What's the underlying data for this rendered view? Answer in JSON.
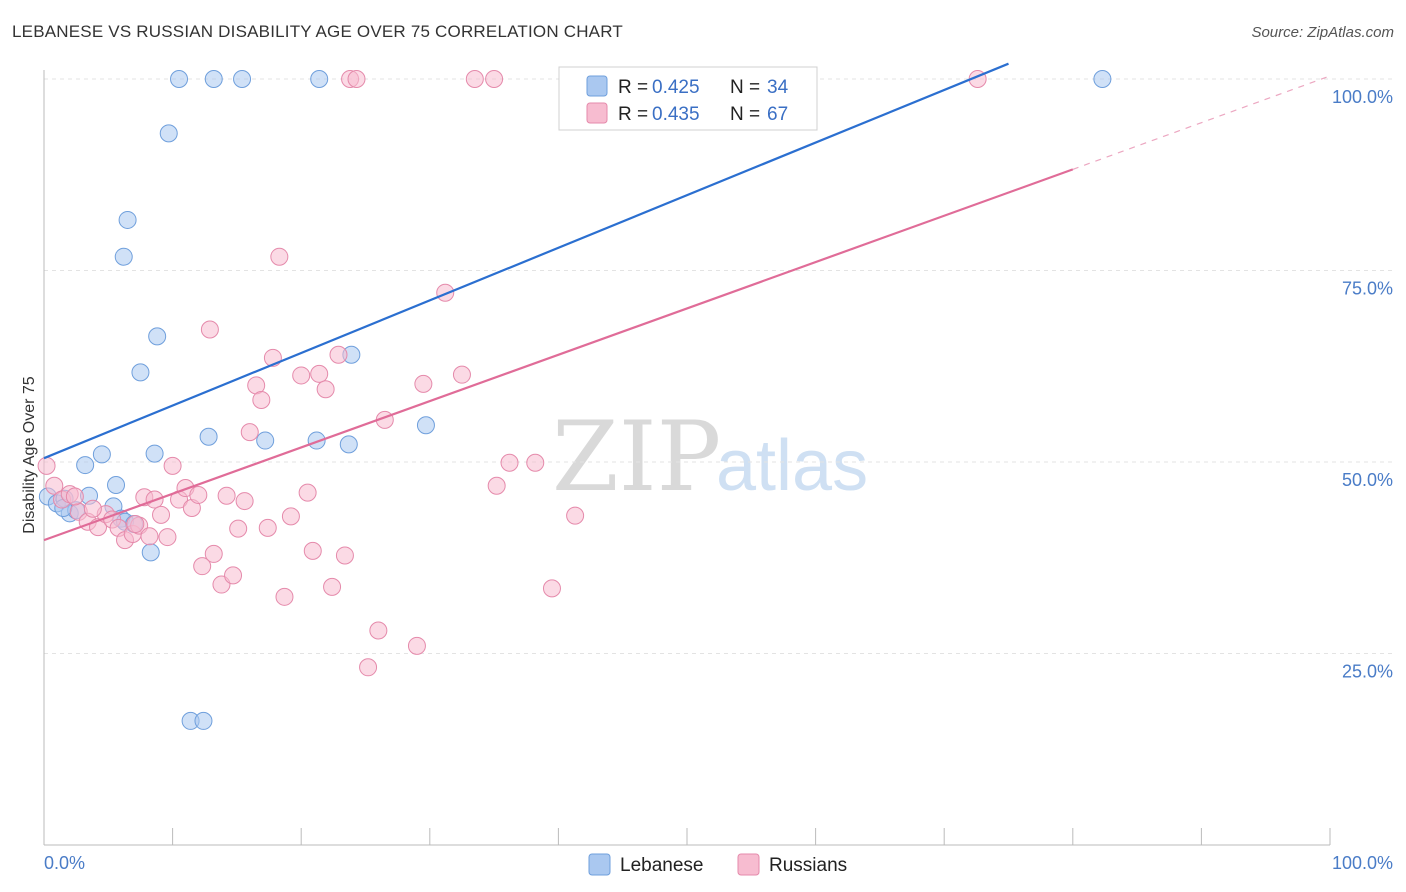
{
  "header": {
    "title": "LEBANESE VS RUSSIAN DISABILITY AGE OVER 75 CORRELATION CHART",
    "source": "Source: ZipAtlas.com"
  },
  "watermark": {
    "zip": "ZIP",
    "atlas": "atlas"
  },
  "legend": {
    "rows": [
      {
        "r_label": "R = ",
        "r_value": "0.425",
        "n_label": "N = ",
        "n_value": "34",
        "color": "#aac8f0"
      },
      {
        "r_label": "R = ",
        "r_value": "0.435",
        "n_label": "N = ",
        "n_value": "67",
        "color": "#f7bcd0"
      }
    ]
  },
  "bottom_legend": {
    "items": [
      "Lebanese",
      "Russians"
    ]
  },
  "chart_data": {
    "type": "scatter",
    "title": "LEBANESE VS RUSSIAN DISABILITY AGE OVER 75 CORRELATION CHART",
    "xlabel": "",
    "ylabel": "Disability Age Over 75",
    "xlim": [
      0,
      100
    ],
    "ylim": [
      0,
      102
    ],
    "x_tick_labels": [
      "0.0%",
      "100.0%"
    ],
    "y_ticks": [
      25,
      50,
      75,
      100
    ],
    "y_tick_labels": [
      "25.0%",
      "50.0%",
      "75.0%",
      "100.0%"
    ],
    "series": [
      {
        "name": "Lebanese",
        "color": "#aac8f0",
        "stroke": "#6f9fdc",
        "line_color": "#2b6fd0",
        "trend": {
          "x": [
            0,
            75
          ],
          "y": [
            50.5,
            102
          ]
        },
        "points": [
          [
            0.3,
            45.5
          ],
          [
            1.0,
            44.6
          ],
          [
            1.6,
            45.2
          ],
          [
            2.0,
            43.3
          ],
          [
            2.5,
            43.7
          ],
          [
            3.2,
            49.6
          ],
          [
            3.5,
            45.6
          ],
          [
            4.5,
            51.0
          ],
          [
            5.4,
            44.2
          ],
          [
            6.0,
            42.6
          ],
          [
            5.6,
            47.0
          ],
          [
            6.3,
            42.2
          ],
          [
            7.0,
            41.9
          ],
          [
            6.5,
            81.6
          ],
          [
            6.2,
            76.8
          ],
          [
            7.5,
            61.7
          ],
          [
            8.6,
            51.1
          ],
          [
            8.3,
            38.2
          ],
          [
            8.8,
            66.4
          ],
          [
            9.7,
            92.9
          ],
          [
            10.5,
            100.0
          ],
          [
            13.2,
            100.0
          ],
          [
            15.4,
            100.0
          ],
          [
            21.4,
            100.0
          ],
          [
            82.3,
            100.0
          ],
          [
            12.8,
            53.3
          ],
          [
            17.2,
            52.8
          ],
          [
            21.2,
            52.8
          ],
          [
            23.9,
            64.0
          ],
          [
            23.7,
            52.3
          ],
          [
            29.7,
            54.8
          ],
          [
            11.4,
            16.2
          ],
          [
            12.4,
            16.2
          ],
          [
            1.5,
            44.0
          ]
        ]
      },
      {
        "name": "Russians",
        "color": "#f7bcd0",
        "stroke": "#e58aab",
        "line_color": "#e06c98",
        "trend": {
          "x": [
            0,
            80
          ],
          "y": [
            39.8,
            88.2
          ]
        },
        "trend_ext": {
          "x": [
            80,
            100
          ],
          "y": [
            88.2,
            100.4
          ]
        },
        "points": [
          [
            0.2,
            49.5
          ],
          [
            0.8,
            46.9
          ],
          [
            1.4,
            45.1
          ],
          [
            2.0,
            45.8
          ],
          [
            2.7,
            43.5
          ],
          [
            3.4,
            42.2
          ],
          [
            4.2,
            41.5
          ],
          [
            4.8,
            43.2
          ],
          [
            5.3,
            42.5
          ],
          [
            5.8,
            41.4
          ],
          [
            6.3,
            39.8
          ],
          [
            6.9,
            40.6
          ],
          [
            7.4,
            41.7
          ],
          [
            7.8,
            45.4
          ],
          [
            8.2,
            40.3
          ],
          [
            8.6,
            45.1
          ],
          [
            9.1,
            43.1
          ],
          [
            9.6,
            40.2
          ],
          [
            10.0,
            49.5
          ],
          [
            10.5,
            45.1
          ],
          [
            11.0,
            46.6
          ],
          [
            11.5,
            44.0
          ],
          [
            12.0,
            45.7
          ],
          [
            12.3,
            36.4
          ],
          [
            12.9,
            67.3
          ],
          [
            13.2,
            38.0
          ],
          [
            13.8,
            34.0
          ],
          [
            14.2,
            45.6
          ],
          [
            14.7,
            35.2
          ],
          [
            15.1,
            41.3
          ],
          [
            15.6,
            44.9
          ],
          [
            16.0,
            53.9
          ],
          [
            16.5,
            60.0
          ],
          [
            16.9,
            58.1
          ],
          [
            17.4,
            41.4
          ],
          [
            17.8,
            63.6
          ],
          [
            18.3,
            76.8
          ],
          [
            18.7,
            32.4
          ],
          [
            19.2,
            42.9
          ],
          [
            20.0,
            61.3
          ],
          [
            20.5,
            46.0
          ],
          [
            20.9,
            38.4
          ],
          [
            21.4,
            61.5
          ],
          [
            21.9,
            59.5
          ],
          [
            22.4,
            33.7
          ],
          [
            22.9,
            64.0
          ],
          [
            23.4,
            37.8
          ],
          [
            23.8,
            100.0
          ],
          [
            24.3,
            100.0
          ],
          [
            25.2,
            23.2
          ],
          [
            26.0,
            28.0
          ],
          [
            26.5,
            55.5
          ],
          [
            29.0,
            26.0
          ],
          [
            29.5,
            60.2
          ],
          [
            31.2,
            72.1
          ],
          [
            32.5,
            61.4
          ],
          [
            33.5,
            100.0
          ],
          [
            35.0,
            100.0
          ],
          [
            35.2,
            46.9
          ],
          [
            36.2,
            49.9
          ],
          [
            38.2,
            49.9
          ],
          [
            39.5,
            33.5
          ],
          [
            41.3,
            43.0
          ],
          [
            72.6,
            100.0
          ],
          [
            7.1,
            41.9
          ],
          [
            3.8,
            43.9
          ],
          [
            2.4,
            45.5
          ]
        ]
      }
    ]
  }
}
